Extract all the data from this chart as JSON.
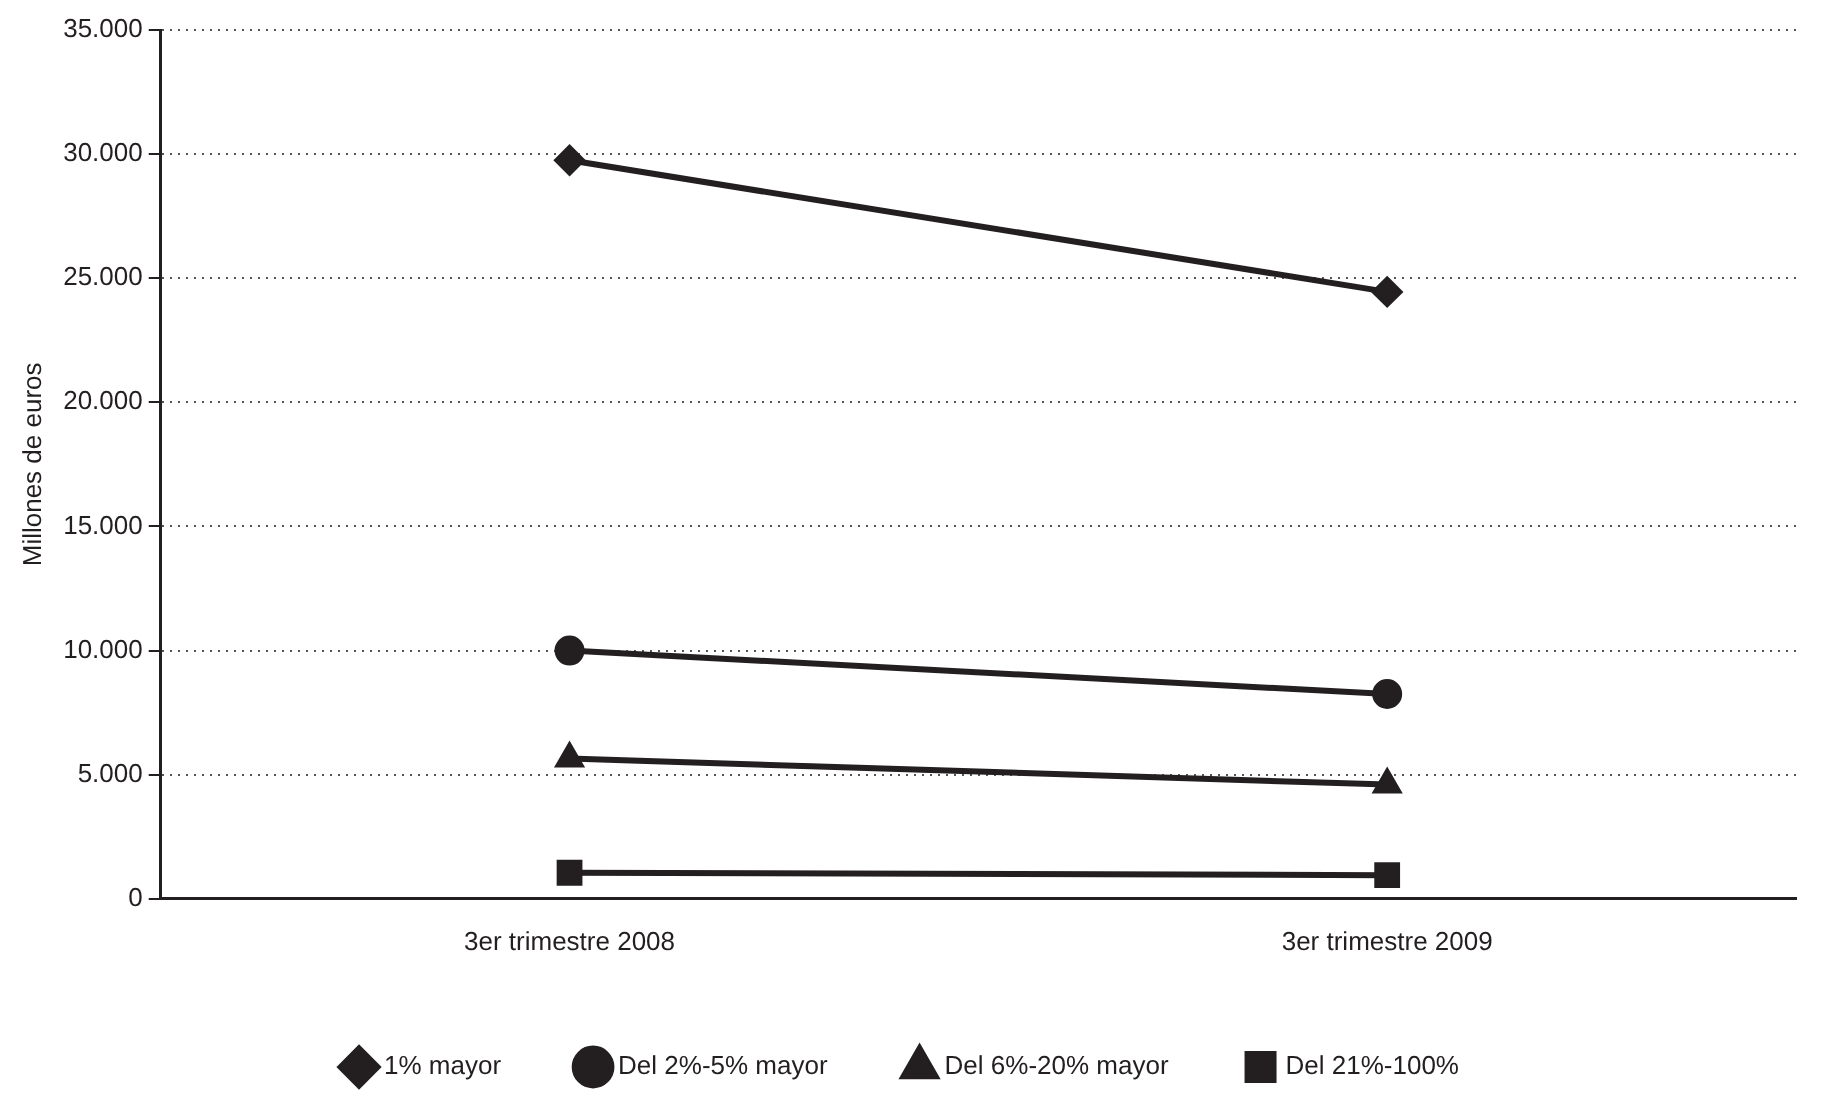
{
  "chart_data": {
    "type": "line",
    "ylabel": "Millones de euros",
    "categories": [
      "3er trimestre 2008",
      "3er trimestre 2009"
    ],
    "series": [
      {
        "name": "1% mayor",
        "color": "#231f20",
        "marker": "diamond",
        "values": [
          29750,
          24450
        ]
      },
      {
        "name": "Del 2%-5% mayor",
        "color": "#231f20",
        "marker": "circle",
        "values": [
          10000,
          8250
        ]
      },
      {
        "name": "Del 6%-20% mayor",
        "color": "#231f20",
        "marker": "triangle",
        "values": [
          5650,
          4600
        ]
      },
      {
        "name": "Del 21%-100%",
        "color": "#231f20",
        "marker": "square",
        "values": [
          1050,
          950
        ]
      }
    ],
    "ylim": [
      0,
      35000
    ],
    "yticks": [
      {
        "value": 0,
        "label": "0"
      },
      {
        "value": 5000,
        "label": "5.000"
      },
      {
        "value": 10000,
        "label": "10.000"
      },
      {
        "value": 15000,
        "label": "15.000"
      },
      {
        "value": 20000,
        "label": "20.000"
      },
      {
        "value": 25000,
        "label": "25.000"
      },
      {
        "value": 30000,
        "label": "30.000"
      },
      {
        "value": 35000,
        "label": "35.000"
      }
    ],
    "grid": "y",
    "legend": "bottom",
    "line_style": "solid"
  }
}
